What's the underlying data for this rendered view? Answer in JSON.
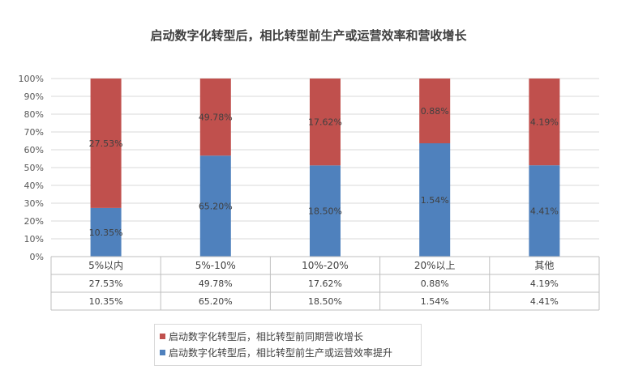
{
  "chart_data": {
    "type": "bar",
    "stacked": "percent",
    "title": "启动数字化转型后，相比转型前生产或运营效率和营收增长",
    "categories": [
      "5%以内",
      "5%-10%",
      "10%-20%",
      "20%以上",
      "其他"
    ],
    "y_ticks": [
      "0%",
      "10%",
      "20%",
      "30%",
      "40%",
      "50%",
      "60%",
      "70%",
      "80%",
      "90%",
      "100%"
    ],
    "ylim": [
      0,
      100
    ],
    "grid": true,
    "series": [
      {
        "name": "启动数字化转型后，相比转型前同期营收增长",
        "color": "#c0504d",
        "values": [
          27.53,
          49.78,
          17.62,
          0.88,
          4.19
        ],
        "labels": [
          "27.53%",
          "49.78%",
          "17.62%",
          "0.88%",
          "4.19%"
        ]
      },
      {
        "name": "启动数字化转型后，相比转型前生产或运营效率提升",
        "color": "#4f81bd",
        "values": [
          10.35,
          65.2,
          18.5,
          1.54,
          4.41
        ],
        "labels": [
          "10.35%",
          "65.20%",
          "18.50%",
          "1.54%",
          "4.41%"
        ]
      }
    ],
    "legend_position": "bottom",
    "data_table": true
  }
}
